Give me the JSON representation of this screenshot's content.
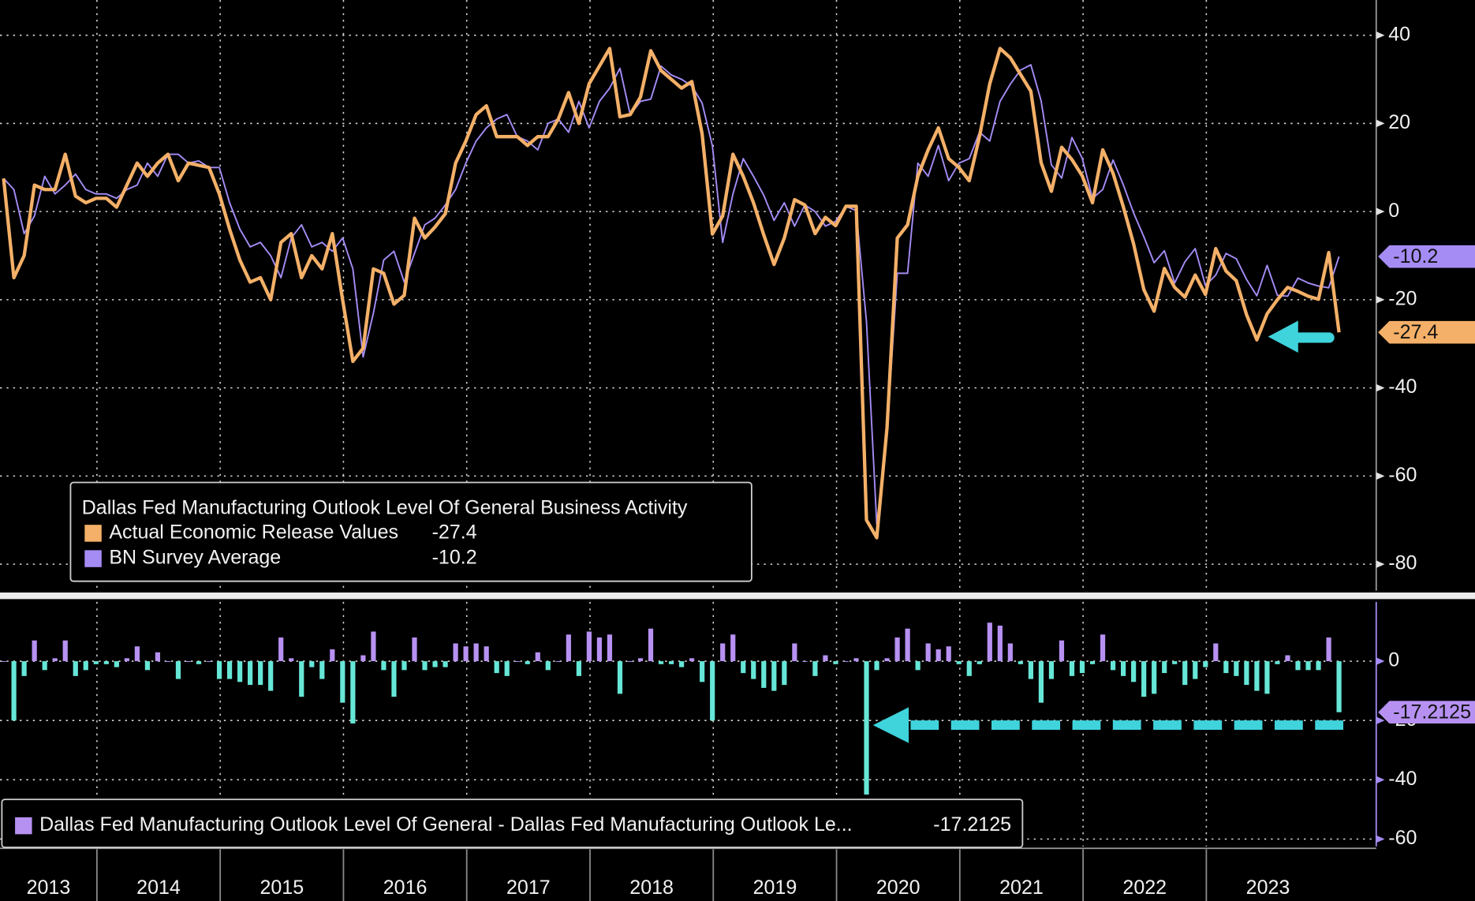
{
  "chart_data": [
    {
      "type": "line",
      "title": "Dallas Fed Manufacturing Outlook Level Of General Business Activity",
      "categories": [
        "2013",
        null,
        null,
        null,
        null,
        null,
        null,
        null,
        null,
        null,
        "2014",
        null,
        null,
        null,
        null,
        null,
        null,
        null,
        null,
        null,
        null,
        null,
        "2015",
        null,
        null,
        null,
        null,
        null,
        null,
        null,
        null,
        null,
        null,
        null,
        "2016",
        null,
        null,
        null,
        null,
        null,
        null,
        null,
        null,
        null,
        null,
        null,
        "2017",
        null,
        null,
        null,
        null,
        null,
        null,
        null,
        null,
        null,
        null,
        null,
        "2018",
        null,
        null,
        null,
        null,
        null,
        null,
        null,
        null,
        null,
        null,
        null,
        "2019",
        null,
        null,
        null,
        null,
        null,
        null,
        null,
        null,
        null,
        null,
        null,
        "2020",
        null,
        null,
        null,
        null,
        null,
        null,
        null,
        null,
        null,
        null,
        null,
        "2021",
        null,
        null,
        null,
        null,
        null,
        null,
        null,
        null,
        null,
        null,
        null,
        "2022",
        null,
        null,
        null,
        null,
        null,
        null,
        null,
        null,
        null,
        null,
        null,
        "2023",
        null,
        null,
        null,
        null,
        null,
        null,
        null,
        null,
        null,
        null,
        null,
        null
      ],
      "series": [
        {
          "name": "Actual Economic Release Values",
          "color": "#f4b068",
          "values": [
            7.5,
            -15,
            -10,
            6,
            5,
            5,
            13,
            3.5,
            2,
            3,
            3,
            1,
            6,
            11,
            8,
            11,
            13,
            7,
            11,
            10.5,
            10,
            4,
            -4,
            -11,
            -16,
            -15,
            -20,
            -7,
            -5,
            -15,
            -10,
            -13,
            -5,
            -20,
            -34,
            -31,
            -13,
            -14,
            -21,
            -19,
            -1.5,
            -6,
            -3.5,
            -0.5,
            11,
            16,
            22,
            24,
            17,
            17,
            17,
            15,
            17,
            17,
            21,
            27,
            20,
            29,
            33,
            37,
            21.5,
            22,
            26,
            36.5,
            32,
            30,
            28,
            29.5,
            17.6,
            -5.1,
            -1,
            13,
            8,
            2,
            -5.3,
            -12,
            -6,
            2.7,
            1.5,
            -5,
            -1.3,
            -3.2,
            1.2,
            1.2,
            -70,
            -74,
            -49,
            -6,
            -3,
            8,
            14,
            19,
            12,
            10,
            7,
            17,
            29,
            37,
            34.9,
            31.1,
            27.3,
            11.1,
            4.6,
            14.6,
            11.8,
            8.1,
            2,
            14,
            8.7,
            1.1,
            -7.3,
            -17.7,
            -22.6,
            -12.9,
            -17.2,
            -19.4,
            -14.4,
            -18.8,
            -8.4,
            -13.5,
            -15.7,
            -23.4,
            -29.1,
            -23.2,
            -20,
            -17.2,
            -18.1,
            -19.2,
            -19.9,
            -9.3,
            -27.4
          ]
        },
        {
          "name": "BN Survey Average",
          "color": "#a58cf5",
          "values": [
            7.5,
            5,
            -5,
            -1,
            8,
            4,
            6,
            8.5,
            5,
            4,
            4,
            3,
            5,
            6,
            11,
            8,
            13,
            13,
            11,
            11.5,
            10,
            10,
            2,
            -4,
            -8,
            -7,
            -10,
            -15,
            -6,
            -3,
            -8,
            -7,
            -9,
            -6,
            -13,
            -33,
            -23,
            -11,
            -9,
            -16,
            -9.5,
            -3,
            -1.5,
            1.5,
            5,
            11,
            16,
            19,
            21,
            22,
            17,
            16,
            14,
            20,
            21,
            18,
            25,
            19,
            25,
            28,
            32.5,
            22,
            25,
            25.5,
            33,
            31,
            30,
            28.5,
            24.6,
            14.9,
            -7,
            4,
            12,
            8,
            3.7,
            -2,
            2,
            -3.3,
            1.5,
            0,
            -3.3,
            -2.2,
            1.2,
            0.2,
            -25,
            -71,
            -50,
            -14,
            -14,
            11,
            8,
            15,
            7,
            11,
            12,
            18,
            16,
            25,
            28.9,
            32.1,
            33.3,
            25.1,
            10.6,
            7.6,
            16.8,
            12.1,
            3,
            5,
            11.7,
            6.1,
            -0.3,
            -5.7,
            -11.6,
            -8.9,
            -16.2,
            -11.4,
            -8.4,
            -16.8,
            -14.4,
            -9.5,
            -10.7,
            -15.4,
            -19.1,
            -12.2,
            -19,
            -19.2,
            -15.1,
            -16.2,
            -16.9,
            -17.3,
            -10.2
          ]
        }
      ],
      "ylim": [
        -86,
        48
      ],
      "yticks": [
        40,
        20,
        0,
        -20,
        -40,
        -60,
        -80
      ],
      "grid": true
    },
    {
      "type": "bar",
      "title": "Dallas Fed Manufacturing Outlook Level Of General - Dallas Fed Manufacturing Outlook Le...",
      "categories": [
        "2013",
        null,
        null,
        null,
        null,
        null,
        null,
        null,
        null,
        null,
        "2014",
        null,
        null,
        null,
        null,
        null,
        null,
        null,
        null,
        null,
        null,
        null,
        "2015",
        null,
        null,
        null,
        null,
        null,
        null,
        null,
        null,
        null,
        null,
        null,
        "2016",
        null,
        null,
        null,
        null,
        null,
        null,
        null,
        null,
        null,
        null,
        null,
        "2017",
        null,
        null,
        null,
        null,
        null,
        null,
        null,
        null,
        null,
        null,
        null,
        "2018",
        null,
        null,
        null,
        null,
        null,
        null,
        null,
        null,
        null,
        null,
        null,
        "2019",
        null,
        null,
        null,
        null,
        null,
        null,
        null,
        null,
        null,
        null,
        null,
        "2020",
        null,
        null,
        null,
        null,
        null,
        null,
        null,
        null,
        null,
        null,
        null,
        "2021",
        null,
        null,
        null,
        null,
        null,
        null,
        null,
        null,
        null,
        null,
        null,
        "2022",
        null,
        null,
        null,
        null,
        null,
        null,
        null,
        null,
        null,
        null,
        null,
        "2023",
        null,
        null,
        null,
        null,
        null,
        null,
        null,
        null,
        null,
        null,
        null,
        null
      ],
      "values": [
        0,
        -20,
        -5,
        7,
        -3,
        1,
        7,
        -5,
        -3,
        -1,
        -1,
        -2,
        1,
        5,
        -3,
        3,
        0,
        -6,
        0,
        -1,
        0,
        -6,
        -6,
        -7,
        -8,
        -8,
        -10,
        8,
        1,
        -12,
        -2,
        -6,
        4,
        -14,
        -21,
        2,
        10,
        -3,
        -12,
        -3,
        8,
        -3,
        -2,
        -2,
        6,
        5,
        6,
        5,
        -4,
        -5,
        0,
        -1,
        3,
        -3,
        0,
        9,
        -5,
        10,
        8,
        9,
        -11,
        0,
        1,
        11,
        -1,
        -1,
        -2,
        1,
        -7,
        -20,
        6,
        9,
        -4,
        -6,
        -9,
        -10,
        -8,
        6,
        0,
        -5,
        2,
        -1,
        0,
        1,
        -45,
        -3,
        1,
        8,
        11,
        -3,
        6,
        4,
        5,
        -1,
        -5,
        -1,
        13,
        12,
        6,
        -1,
        -6,
        -14,
        -6,
        7,
        -5,
        -4,
        -1,
        9,
        -3,
        -5,
        -7,
        -12,
        -11,
        -4,
        -1,
        -8,
        -6,
        -2,
        6,
        -4,
        -5,
        -8,
        -10,
        -11,
        -1,
        2,
        -3,
        -3,
        -3,
        8,
        -17.2125
      ],
      "positive_color": "#b791f2",
      "negative_color": "#66e6d6",
      "ylim": [
        -62.5,
        20
      ],
      "yticks": [
        0,
        -20,
        -40,
        -60
      ],
      "grid": true
    }
  ]
}
